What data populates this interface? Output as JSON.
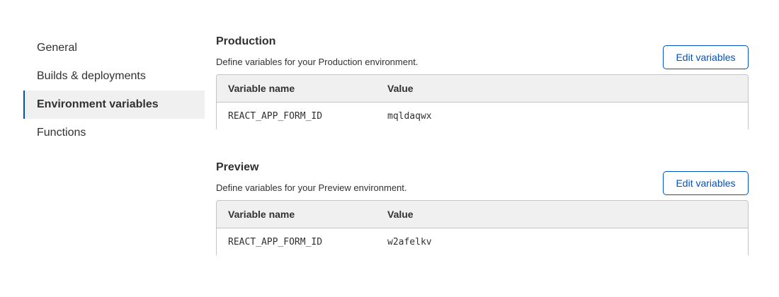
{
  "sidebar": {
    "items": [
      {
        "label": "General",
        "active": false
      },
      {
        "label": "Builds & deployments",
        "active": false
      },
      {
        "label": "Environment variables",
        "active": true
      },
      {
        "label": "Functions",
        "active": false
      }
    ]
  },
  "production": {
    "title": "Production",
    "description": "Define variables for your Production environment.",
    "button": "Edit variables",
    "columns": [
      "Variable name",
      "Value"
    ],
    "rows": [
      {
        "name": "REACT_APP_FORM_ID",
        "value": "mqldaqwx"
      }
    ]
  },
  "preview": {
    "title": "Preview",
    "description": "Define variables for your Preview environment.",
    "button": "Edit variables",
    "columns": [
      "Variable name",
      "Value"
    ],
    "rows": [
      {
        "name": "REACT_APP_FORM_ID",
        "value": "w2afelkv"
      }
    ]
  },
  "colors": {
    "accent": "#0051c3"
  }
}
